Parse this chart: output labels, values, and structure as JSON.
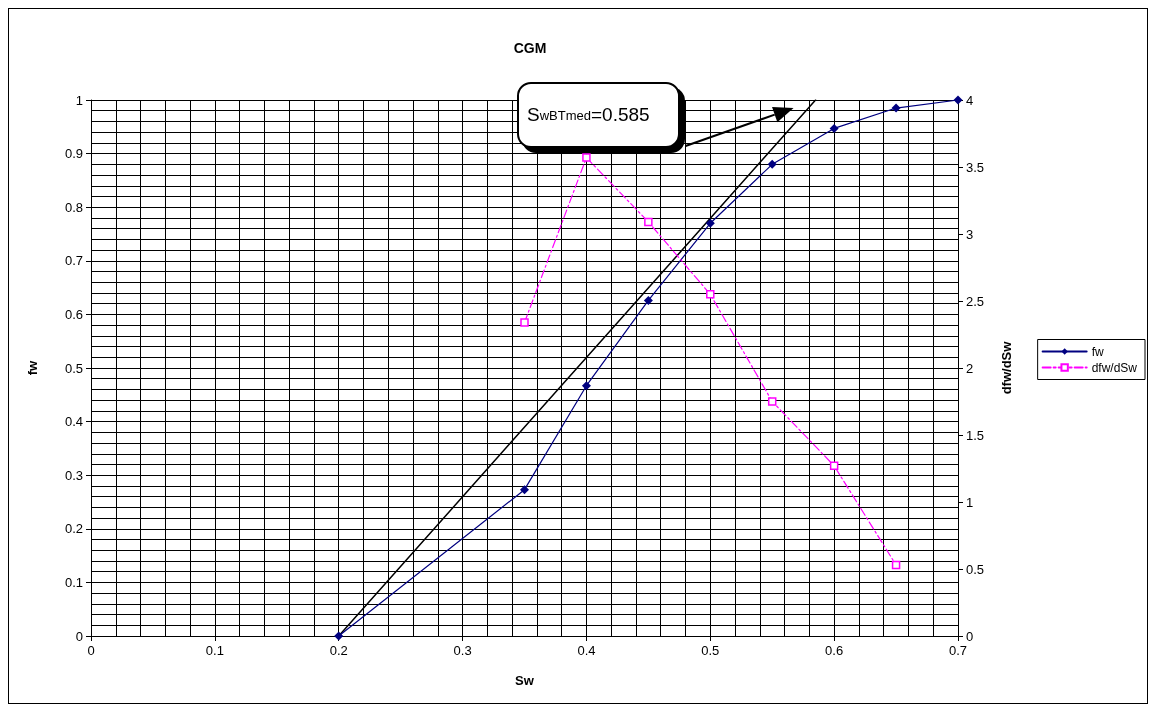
{
  "chart_data": {
    "type": "line",
    "title": "CGM",
    "xlabel": "Sw",
    "ylabel": "fw",
    "y2label": "dfw/dSw",
    "annotations": [
      "S$_{wBTmed}$=0.585"
    ],
    "series": [
      {
        "name": "fw",
        "color": "#000080",
        "marker": "diamond",
        "line_style": "solid",
        "x": [
          0.2,
          0.35,
          0.4,
          0.45,
          0.5,
          0.55,
          0.6,
          0.65,
          0.7
        ],
        "values": [
          0,
          0.273,
          0.467,
          0.626,
          0.77,
          0.88,
          0.947,
          0.985,
          1.0
        ]
      },
      {
        "name": "dfw/dSw",
        "color": "#ff00ff",
        "marker": "square",
        "line_style": "dashed",
        "axis": "y2",
        "x": [
          0.35,
          0.4,
          0.45,
          0.5,
          0.55,
          0.6,
          0.65
        ],
        "values": [
          2.34,
          3.57,
          3.09,
          2.55,
          1.75,
          1.27,
          0.53
        ]
      },
      {
        "color": "#000000",
        "marker": "none",
        "line_style": "solid",
        "x": [
          0.2,
          0.585
        ],
        "values": [
          0,
          1
        ]
      }
    ],
    "xlim": [
      0,
      0.7
    ],
    "xticks": [
      0,
      0.1,
      0.2,
      0.3,
      0.4,
      0.5,
      0.6,
      0.7
    ],
    "ylim": [
      0,
      1
    ],
    "yticks": [
      0,
      0.1,
      0.2,
      0.3,
      0.4,
      0.5,
      0.6,
      0.7,
      0.8,
      0.9,
      1
    ],
    "y2lim": [
      0,
      4
    ],
    "y2ticks": [
      0,
      0.5,
      1,
      1.5,
      2,
      2.5,
      3,
      3.5,
      4
    ],
    "grid": true,
    "legend": "right"
  }
}
